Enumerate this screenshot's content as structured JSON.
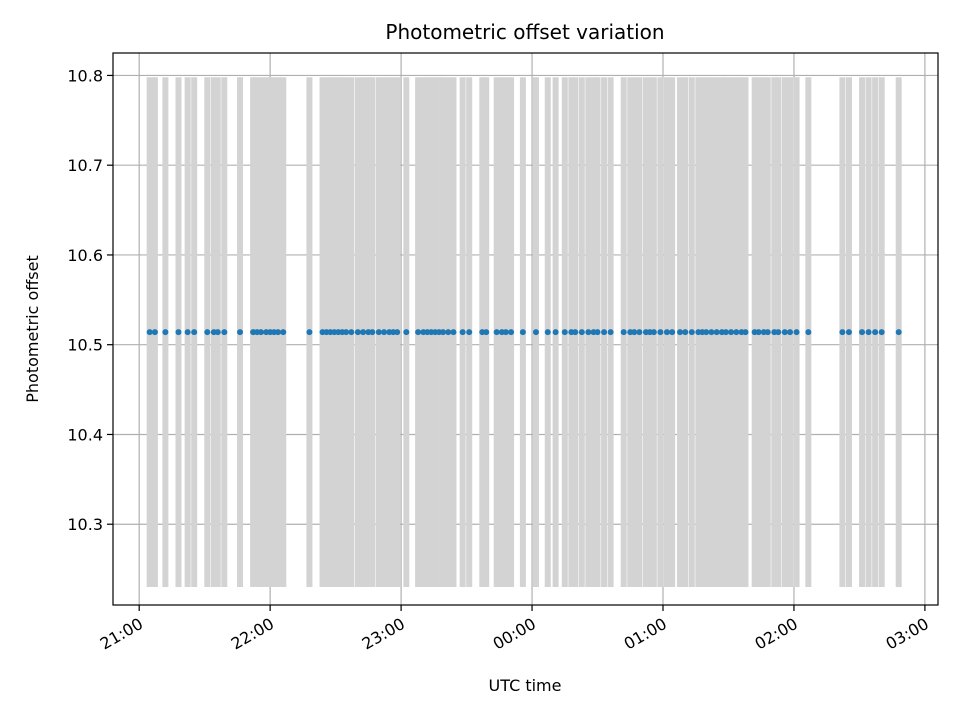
{
  "chart_data": {
    "type": "scatter",
    "title": "Photometric offset variation",
    "xlabel": "UTC time",
    "ylabel": "Photometric offset",
    "x_ticks": [
      "21:00",
      "22:00",
      "23:00",
      "00:00",
      "01:00",
      "02:00",
      "03:00"
    ],
    "y_ticks": [
      "10.3",
      "10.4",
      "10.5",
      "10.6",
      "10.7",
      "10.8"
    ],
    "x_range_hours": [
      20.8,
      27.1
    ],
    "ylim": [
      10.21,
      10.825
    ],
    "grid": true,
    "error_bar_range": [
      10.23,
      10.798
    ],
    "colors": {
      "points": "#1f77b4",
      "error_bars": "#d3d3d3",
      "grid": "#b0b0b0"
    },
    "series": [
      {
        "y": 10.514,
        "x_hours": [
          21.08,
          21.12,
          21.2,
          21.3,
          21.37,
          21.42,
          21.52,
          21.57,
          21.6,
          21.65,
          21.77,
          21.87,
          21.9,
          21.93,
          21.97,
          22.0,
          22.03,
          22.06,
          22.1,
          22.3,
          22.4,
          22.43,
          22.46,
          22.49,
          22.52,
          22.55,
          22.58,
          22.62,
          22.67,
          22.71,
          22.75,
          22.78,
          22.83,
          22.87,
          22.91,
          22.94,
          22.97,
          23.04,
          23.13,
          23.17,
          23.2,
          23.23,
          23.26,
          23.29,
          23.32,
          23.36,
          23.4,
          23.47,
          23.52,
          23.62,
          23.65,
          23.73,
          23.77,
          23.8,
          23.84,
          23.93,
          24.03,
          24.12,
          24.18,
          24.25,
          24.3,
          24.33,
          24.38,
          24.43,
          24.47,
          24.5,
          24.55,
          24.6,
          24.7,
          24.75,
          24.78,
          24.82,
          24.87,
          24.9,
          24.93,
          24.98,
          25.03,
          25.07,
          25.13,
          25.17,
          25.22,
          25.27,
          25.3,
          25.33,
          25.37,
          25.41,
          25.45,
          25.48,
          25.52,
          25.56,
          25.6,
          25.63,
          25.7,
          25.73,
          25.77,
          25.8,
          25.85,
          25.88,
          25.93,
          25.97,
          26.02,
          26.11,
          26.37,
          26.42,
          26.52,
          26.57,
          26.62,
          26.67,
          26.8
        ]
      }
    ]
  }
}
